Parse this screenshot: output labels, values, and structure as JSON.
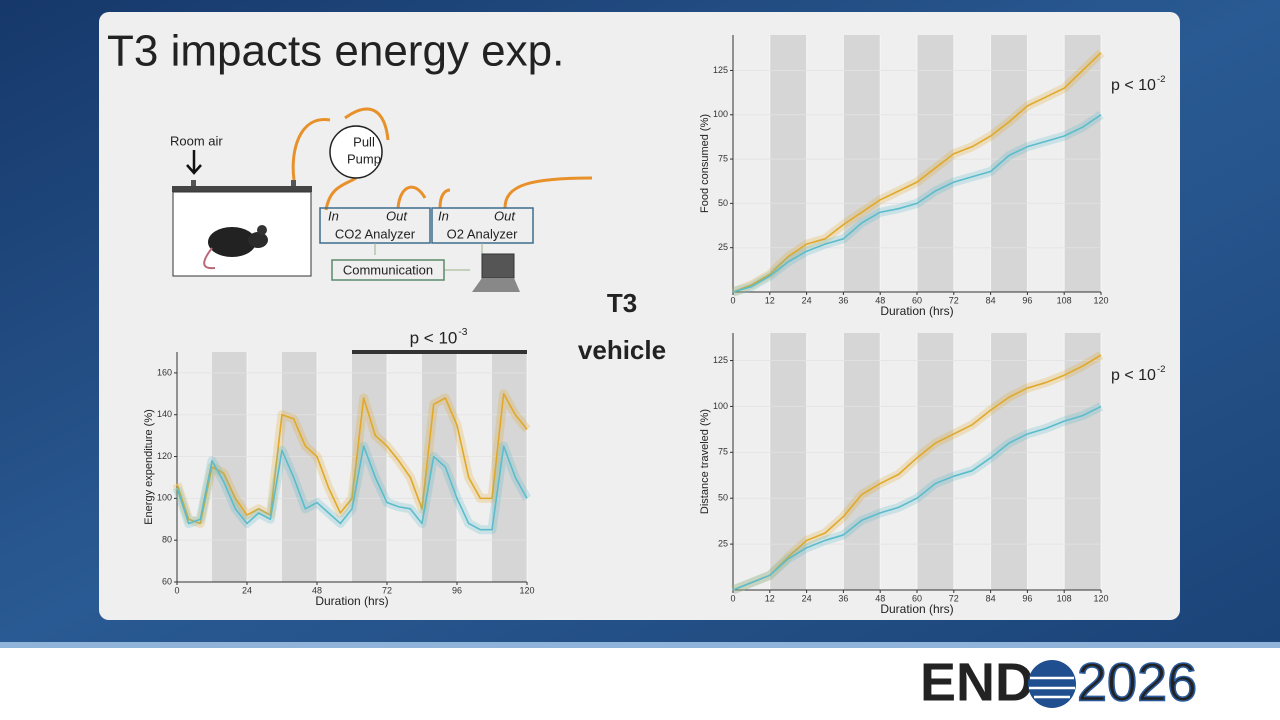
{
  "title": "T3 impacts energy exp.",
  "diagram": {
    "room_air": "Room air",
    "pump_line1": "Pull",
    "pump_line2": "Pump",
    "co2_in": "In",
    "co2_out": "Out",
    "co2_name": "CO2 Analyzer",
    "o2_in": "In",
    "o2_out": "Out",
    "o2_name": "O2 Analyzer",
    "communication": "Communication"
  },
  "logo": {
    "left": "END",
    "right": "2026"
  },
  "chart_data": [
    {
      "type": "line",
      "xlabel": "Duration (hrs)",
      "ylabel": "Energy expenditure (%)",
      "x": [
        0,
        4,
        8,
        12,
        16,
        20,
        24,
        28,
        32,
        36,
        40,
        44,
        48,
        52,
        56,
        60,
        64,
        68,
        72,
        76,
        80,
        84,
        88,
        92,
        96,
        100,
        104,
        108,
        112,
        116,
        120
      ],
      "xlim": [
        0,
        120
      ],
      "xticks": [
        0,
        24,
        48,
        72,
        96,
        120
      ],
      "ylim": [
        60,
        170
      ],
      "yticks": [
        60,
        80,
        100,
        120,
        140,
        160
      ],
      "dark_periods": [
        [
          12,
          24
        ],
        [
          36,
          48
        ],
        [
          60,
          72
        ],
        [
          84,
          96
        ],
        [
          108,
          120
        ]
      ],
      "annotation": "p < 10",
      "annotation_exponent": "-3",
      "annotation_span": [
        60,
        120
      ],
      "series": [
        {
          "name": "T3",
          "color": "#e0a92a",
          "values": [
            107,
            90,
            88,
            115,
            112,
            100,
            92,
            95,
            92,
            140,
            138,
            125,
            120,
            105,
            93,
            100,
            148,
            130,
            125,
            118,
            110,
            95,
            145,
            148,
            135,
            110,
            100,
            100,
            150,
            140,
            133
          ]
        },
        {
          "name": "vehicle",
          "color": "#5bbccc",
          "values": [
            105,
            88,
            90,
            118,
            108,
            95,
            88,
            93,
            90,
            123,
            110,
            95,
            98,
            93,
            88,
            95,
            125,
            110,
            98,
            96,
            95,
            88,
            120,
            115,
            100,
            88,
            85,
            85,
            125,
            110,
            100
          ]
        }
      ]
    },
    {
      "type": "line",
      "xlabel": "Duration (hrs)",
      "ylabel": "Food consumed (%)",
      "x": [
        0,
        6,
        12,
        18,
        24,
        30,
        36,
        42,
        48,
        54,
        60,
        66,
        72,
        78,
        84,
        90,
        96,
        102,
        108,
        114,
        120
      ],
      "xlim": [
        0,
        120
      ],
      "xticks": [
        0,
        12,
        24,
        36,
        48,
        60,
        72,
        84,
        96,
        108,
        120
      ],
      "ylim": [
        0,
        145
      ],
      "yticks": [
        25,
        50,
        75,
        100,
        125
      ],
      "dark_periods": [
        [
          12,
          24
        ],
        [
          36,
          48
        ],
        [
          60,
          72
        ],
        [
          84,
          96
        ],
        [
          108,
          120
        ]
      ],
      "annotation": "p < 10",
      "annotation_exponent": "-2",
      "series": [
        {
          "color": "#e0a92a",
          "values": [
            0,
            4,
            10,
            20,
            27,
            30,
            38,
            45,
            52,
            57,
            62,
            70,
            78,
            82,
            88,
            96,
            105,
            110,
            115,
            125,
            135
          ]
        },
        {
          "color": "#5bbccc",
          "values": [
            0,
            3,
            9,
            17,
            23,
            27,
            30,
            39,
            45,
            47,
            50,
            57,
            62,
            65,
            68,
            77,
            82,
            85,
            88,
            93,
            100
          ]
        }
      ]
    },
    {
      "type": "line",
      "xlabel": "Duration (hrs)",
      "ylabel": "Distance traveled (%)",
      "x": [
        0,
        6,
        12,
        18,
        24,
        30,
        36,
        42,
        48,
        54,
        60,
        66,
        72,
        78,
        84,
        90,
        96,
        102,
        108,
        114,
        120
      ],
      "xlim": [
        0,
        120
      ],
      "xticks": [
        0,
        12,
        24,
        36,
        48,
        60,
        72,
        84,
        96,
        108,
        120
      ],
      "ylim": [
        0,
        140
      ],
      "yticks": [
        25,
        50,
        75,
        100,
        125
      ],
      "dark_periods": [
        [
          12,
          24
        ],
        [
          36,
          48
        ],
        [
          60,
          72
        ],
        [
          84,
          96
        ],
        [
          108,
          120
        ]
      ],
      "annotation": "p < 10",
      "annotation_exponent": "-2",
      "series": [
        {
          "color": "#e0a92a",
          "values": [
            0,
            4,
            8,
            18,
            27,
            31,
            40,
            52,
            58,
            63,
            72,
            80,
            85,
            90,
            98,
            105,
            110,
            113,
            117,
            122,
            128
          ]
        },
        {
          "color": "#5bbccc",
          "values": [
            0,
            4,
            8,
            17,
            23,
            27,
            30,
            38,
            42,
            45,
            50,
            58,
            62,
            65,
            72,
            80,
            85,
            88,
            92,
            95,
            100
          ]
        }
      ]
    }
  ]
}
